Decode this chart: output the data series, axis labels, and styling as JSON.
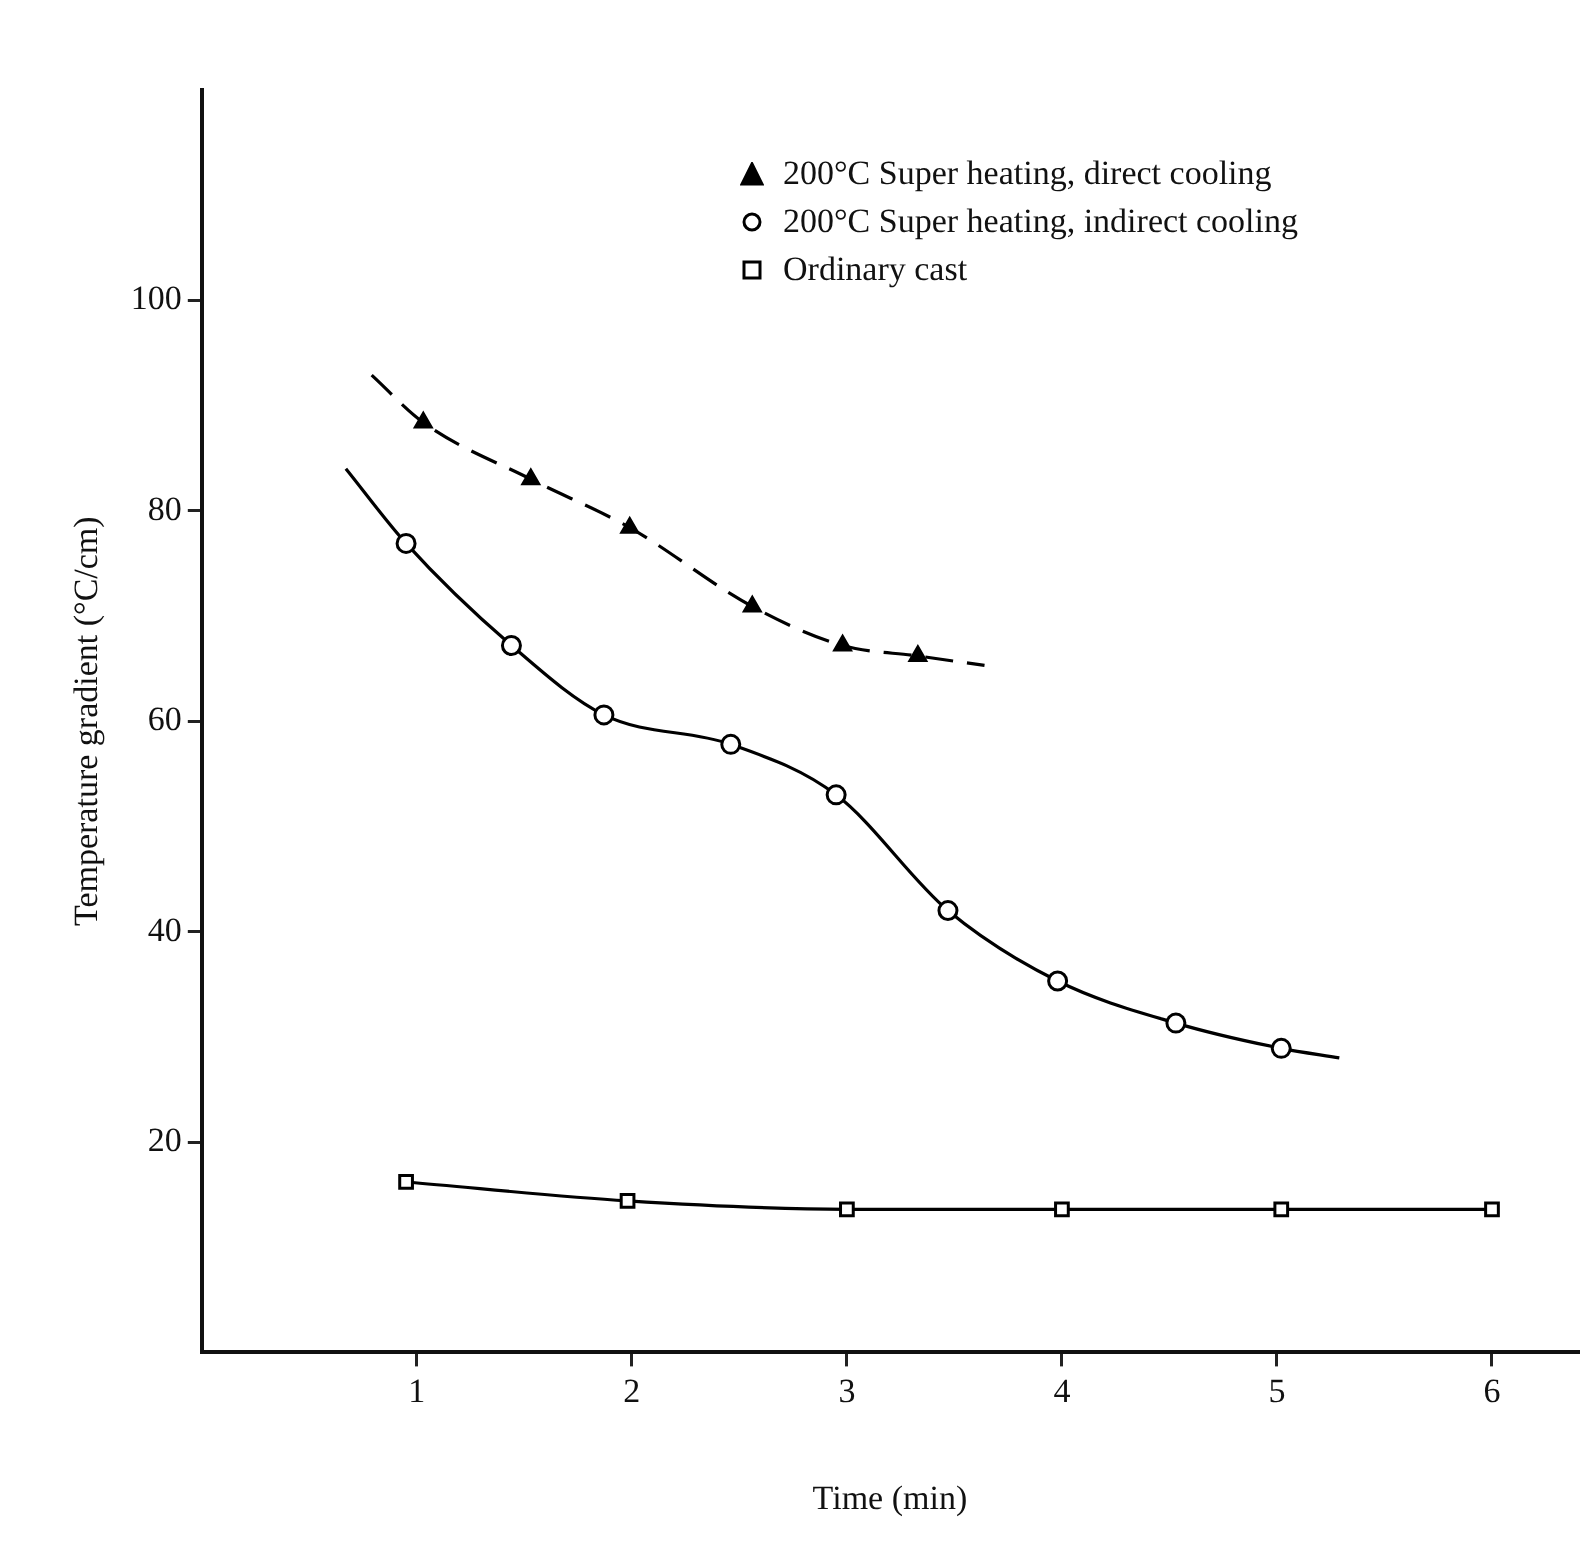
{
  "chart_data": {
    "type": "scatter",
    "xlabel": "Time (min)",
    "ylabel": "Temperature gradient (°C/cm)",
    "xlim": [
      0,
      6.4
    ],
    "xticks": [
      1,
      2,
      3,
      4,
      5,
      6
    ],
    "ylim": [
      0,
      120
    ],
    "yticks": [
      20,
      40,
      60,
      80,
      100
    ],
    "grid": false,
    "legend": "top right",
    "series": [
      {
        "name": "200°C Super heating, direct cooling",
        "color": "#000000",
        "marker": "triangle",
        "x": [
          1.03,
          1.53,
          1.99,
          2.56,
          2.98,
          3.33
        ],
        "values": [
          88.4,
          83,
          78.4,
          70.9,
          67.2,
          66.2
        ]
      },
      {
        "name": "200°C Super heating, indirect cooling",
        "color": "#000000",
        "marker": "circle",
        "x": [
          0.95,
          1.44,
          1.87,
          2.46,
          2.95,
          3.47,
          3.98,
          4.53,
          5.02
        ],
        "values": [
          76.9,
          67.2,
          60.6,
          57.8,
          53,
          42,
          35.3,
          31.3,
          28.9
        ]
      },
      {
        "name": "Ordinary cast",
        "color": "#000000",
        "marker": "square",
        "x": [
          0.95,
          1.98,
          3,
          4,
          5.02,
          6
        ],
        "values": [
          16.2,
          14.4,
          13.6,
          13.6,
          13.6,
          13.6
        ]
      },
      {
        "type": "line",
        "color": "#000000",
        "marker": "none",
        "line_style": "dashed",
        "x": [
          0.79,
          1.03,
          1.53,
          1.99,
          2.56,
          2.98,
          3.33,
          3.64
        ],
        "values": [
          92.9,
          88.4,
          83,
          78.4,
          70.9,
          67.2,
          66.2,
          65.3
        ]
      },
      {
        "type": "line",
        "color": "#000000",
        "marker": "none",
        "line_style": "solid",
        "x": [
          0.67,
          0.95,
          1.44,
          1.87,
          2.46,
          2.95,
          3.47,
          3.98,
          4.53,
          5.02,
          5.29
        ],
        "values": [
          84,
          76.9,
          67.2,
          60.6,
          57.8,
          53,
          42,
          35.3,
          31.3,
          28.9,
          28
        ]
      },
      {
        "type": "line",
        "color": "#000000",
        "marker": "none",
        "line_style": "solid",
        "x": [
          0.95,
          1.98,
          3,
          4,
          5.02,
          6
        ],
        "values": [
          16.2,
          14.4,
          13.6,
          13.6,
          13.6,
          13.6
        ]
      }
    ]
  }
}
